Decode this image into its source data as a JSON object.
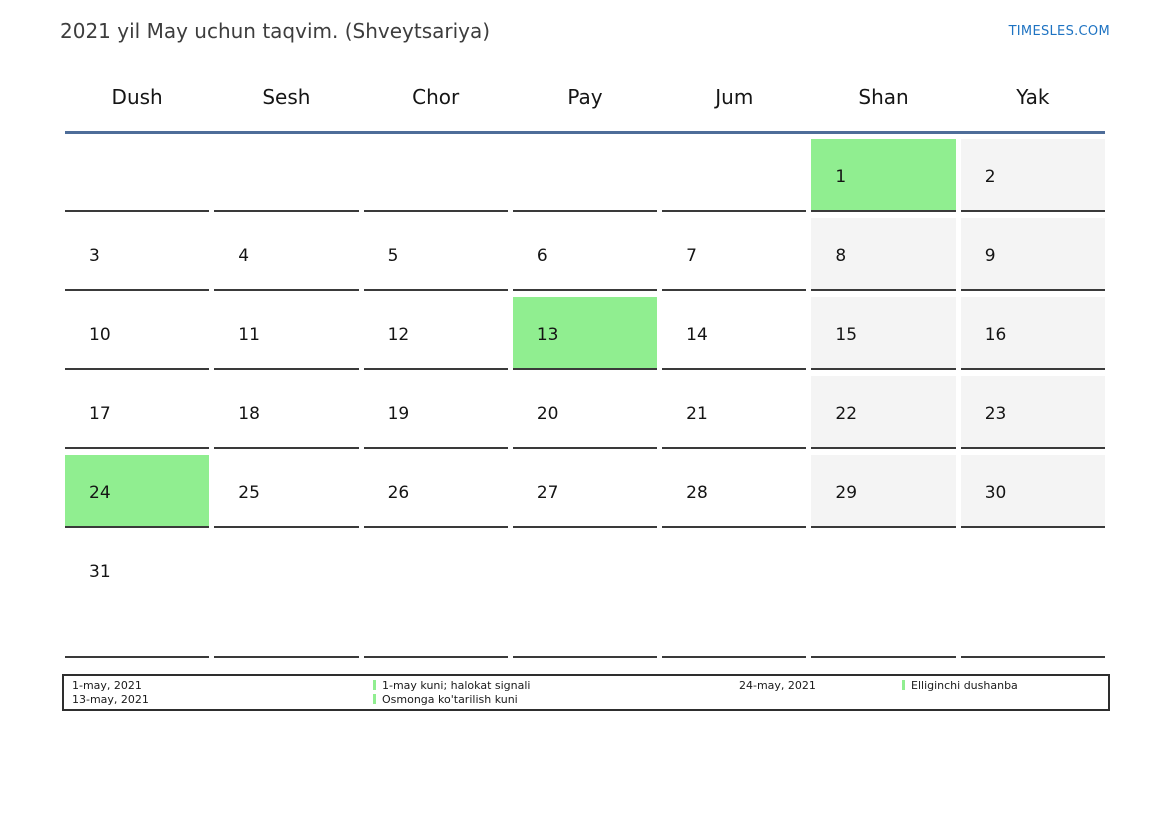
{
  "header": {
    "title": "2021 yil May uchun taqvim. (Shveytsariya)",
    "brand": "TIMESLES.COM"
  },
  "calendar": {
    "weekday_headers": [
      "Dush",
      "Sesh",
      "Chor",
      "Pay",
      "Jum",
      "Shan",
      "Yak"
    ],
    "weeks": [
      {
        "cells": [
          {
            "label": "",
            "kind": "empty"
          },
          {
            "label": "",
            "kind": "empty"
          },
          {
            "label": "",
            "kind": "empty"
          },
          {
            "label": "",
            "kind": "empty"
          },
          {
            "label": "",
            "kind": "empty"
          },
          {
            "label": "1",
            "kind": "holiday"
          },
          {
            "label": "2",
            "kind": "weekend"
          }
        ]
      },
      {
        "cells": [
          {
            "label": "3",
            "kind": "normal"
          },
          {
            "label": "4",
            "kind": "normal"
          },
          {
            "label": "5",
            "kind": "normal"
          },
          {
            "label": "6",
            "kind": "normal"
          },
          {
            "label": "7",
            "kind": "normal"
          },
          {
            "label": "8",
            "kind": "weekend"
          },
          {
            "label": "9",
            "kind": "weekend"
          }
        ]
      },
      {
        "cells": [
          {
            "label": "10",
            "kind": "normal"
          },
          {
            "label": "11",
            "kind": "normal"
          },
          {
            "label": "12",
            "kind": "normal"
          },
          {
            "label": "13",
            "kind": "holiday"
          },
          {
            "label": "14",
            "kind": "normal"
          },
          {
            "label": "15",
            "kind": "weekend"
          },
          {
            "label": "16",
            "kind": "weekend"
          }
        ]
      },
      {
        "cells": [
          {
            "label": "17",
            "kind": "normal"
          },
          {
            "label": "18",
            "kind": "normal"
          },
          {
            "label": "19",
            "kind": "normal"
          },
          {
            "label": "20",
            "kind": "normal"
          },
          {
            "label": "21",
            "kind": "normal"
          },
          {
            "label": "22",
            "kind": "weekend"
          },
          {
            "label": "23",
            "kind": "weekend"
          }
        ]
      },
      {
        "cells": [
          {
            "label": "24",
            "kind": "holiday"
          },
          {
            "label": "25",
            "kind": "normal"
          },
          {
            "label": "26",
            "kind": "normal"
          },
          {
            "label": "27",
            "kind": "normal"
          },
          {
            "label": "28",
            "kind": "normal"
          },
          {
            "label": "29",
            "kind": "weekend"
          },
          {
            "label": "30",
            "kind": "weekend"
          }
        ]
      },
      {
        "cells": [
          {
            "label": "31",
            "kind": "normal"
          },
          {
            "label": "",
            "kind": "empty"
          },
          {
            "label": "",
            "kind": "empty"
          },
          {
            "label": "",
            "kind": "empty"
          },
          {
            "label": "",
            "kind": "empty"
          },
          {
            "label": "",
            "kind": "empty"
          },
          {
            "label": "",
            "kind": "empty"
          }
        ]
      }
    ]
  },
  "legend": {
    "dates_left": [
      "1-may, 2021",
      "13-may, 2021"
    ],
    "names_left": [
      "1-may kuni; halokat signali",
      "Osmonga ko'tarilish kuni"
    ],
    "date_right": "24-may, 2021",
    "name_right": "Elliginchi dushanba"
  },
  "colors": {
    "holiday_green": "#90ee90",
    "weekend_gray": "#f4f4f4",
    "week_line_blue": "#4e6d99",
    "brand_blue": "#1e73c2",
    "cell_border_dark": "#3a3a3a",
    "legend_marker_green": "#90ee90",
    "title_text": "#3d3d3d"
  }
}
